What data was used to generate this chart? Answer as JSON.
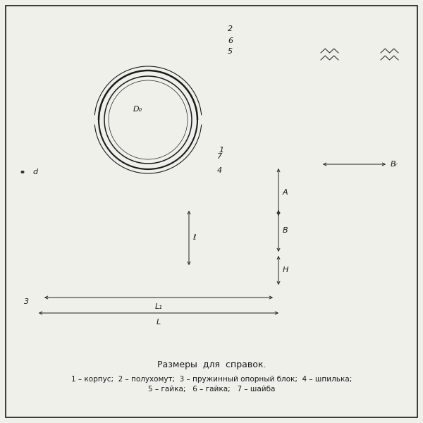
{
  "bg_color": "#f0f0eb",
  "line_color": "#1a1a1a",
  "title_text": "Размеры  для  справок.",
  "legend_line1": "1 – корпус;  2 – полухомут;  3 – пружинный опорный блок;  4 – шпилька;",
  "legend_line2": "5 – гайка;   6 – гайка;   7 – шайба",
  "label_D0": "D₀",
  "label_d": "d",
  "label_A": "A",
  "label_B": "B",
  "label_H": "H",
  "label_L": "L",
  "label_L1": "L₁",
  "label_e": "ℓ",
  "label_Br": "Bᵣ",
  "num_1": "1",
  "num_2": "2",
  "num_3": "3",
  "num_4": "4",
  "num_5": "5",
  "num_6": "6",
  "num_7": "7"
}
